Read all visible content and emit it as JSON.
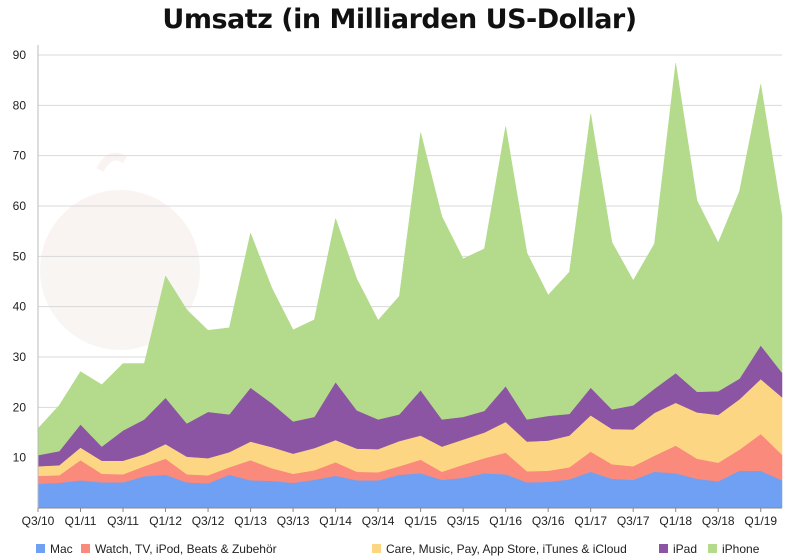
{
  "chart_data": {
    "type": "area",
    "stacked": true,
    "title": "Umsatz (in Milliarden US-Dollar)",
    "ylim": [
      0,
      90
    ],
    "yticks": [
      10,
      20,
      30,
      40,
      50,
      60,
      70,
      80,
      90
    ],
    "grid": true,
    "legend_position": "bottom",
    "x": [
      "Q3/10",
      "Q4/10",
      "Q1/11",
      "Q2/11",
      "Q3/11",
      "Q4/11",
      "Q1/12",
      "Q2/12",
      "Q3/12",
      "Q4/12",
      "Q1/13",
      "Q2/13",
      "Q3/13",
      "Q4/13",
      "Q1/14",
      "Q2/14",
      "Q3/14",
      "Q4/14",
      "Q1/15",
      "Q2/15",
      "Q3/15",
      "Q4/15",
      "Q1/16",
      "Q2/16",
      "Q3/16",
      "Q4/16",
      "Q1/17",
      "Q2/17",
      "Q3/17",
      "Q4/17",
      "Q1/18",
      "Q2/18",
      "Q3/18",
      "Q4/18",
      "Q1/19",
      "Q2/19"
    ],
    "xtick_labels": [
      "Q3/10",
      "Q1/11",
      "Q3/11",
      "Q1/12",
      "Q3/12",
      "Q1/13",
      "Q3/13",
      "Q1/14",
      "Q3/14",
      "Q1/15",
      "Q3/15",
      "Q1/16",
      "Q3/16",
      "Q1/17",
      "Q3/17",
      "Q1/18",
      "Q3/18",
      "Q1/19"
    ],
    "series": [
      {
        "name": "Mac",
        "color": "#6fa0f4",
        "values": [
          4.8,
          5.0,
          5.5,
          5.1,
          5.1,
          6.3,
          6.6,
          5.1,
          4.9,
          6.6,
          5.5,
          5.4,
          5.0,
          5.6,
          6.4,
          5.5,
          5.5,
          6.6,
          6.9,
          5.6,
          6.0,
          6.9,
          6.7,
          5.1,
          5.2,
          5.7,
          7.2,
          5.8,
          5.6,
          7.2,
          6.9,
          5.8,
          5.3,
          7.4,
          7.4,
          5.5
        ]
      },
      {
        "name": " Watch,  TV, iPod, Beats & Zubehör",
        "color": "#f98a7c",
        "values": [
          1.6,
          1.5,
          4.0,
          1.7,
          1.6,
          2.0,
          3.2,
          1.6,
          1.6,
          1.5,
          4.0,
          2.5,
          1.8,
          1.9,
          2.7,
          1.7,
          1.6,
          1.7,
          2.7,
          1.6,
          2.6,
          3.0,
          4.3,
          2.2,
          2.2,
          2.4,
          4.0,
          2.9,
          2.7,
          3.2,
          5.5,
          4.0,
          3.7,
          4.2,
          7.3,
          5.1
        ]
      },
      {
        "name": "Care,  Music,  Pay, App Store, iTunes & iCloud",
        "color": "#fdd683",
        "values": [
          1.9,
          2.0,
          2.5,
          2.6,
          2.7,
          2.4,
          2.9,
          3.5,
          3.4,
          3.0,
          3.7,
          4.2,
          4.0,
          4.4,
          4.4,
          4.6,
          4.6,
          5.0,
          4.8,
          5.0,
          5.0,
          5.1,
          6.1,
          5.9,
          6.0,
          6.3,
          7.2,
          7.0,
          7.3,
          8.5,
          8.5,
          9.2,
          9.5,
          10.0,
          10.9,
          11.4
        ]
      },
      {
        "name": "iPad",
        "color": "#8b55a3",
        "values": [
          2.2,
          2.8,
          4.6,
          2.8,
          6.0,
          6.9,
          9.2,
          6.6,
          9.2,
          7.5,
          10.7,
          8.7,
          6.4,
          6.2,
          11.5,
          7.6,
          5.9,
          5.3,
          9.0,
          5.4,
          4.5,
          4.3,
          7.1,
          4.4,
          4.9,
          4.3,
          5.5,
          3.9,
          4.8,
          4.8,
          5.9,
          4.1,
          4.7,
          4.1,
          6.7,
          4.9
        ]
      },
      {
        "name": "iPhone",
        "color": "#b3db8b",
        "values": [
          5.3,
          9.1,
          10.5,
          12.3,
          13.3,
          11.1,
          24.2,
          22.6,
          16.2,
          17.2,
          30.7,
          22.9,
          18.2,
          19.3,
          32.5,
          26.1,
          19.7,
          23.5,
          51.2,
          40.3,
          31.4,
          32.2,
          51.6,
          33.1,
          24.0,
          28.2,
          54.4,
          33.2,
          24.8,
          28.8,
          61.6,
          38.0,
          29.5,
          37.2,
          51.9,
          31.1
        ]
      }
    ]
  }
}
